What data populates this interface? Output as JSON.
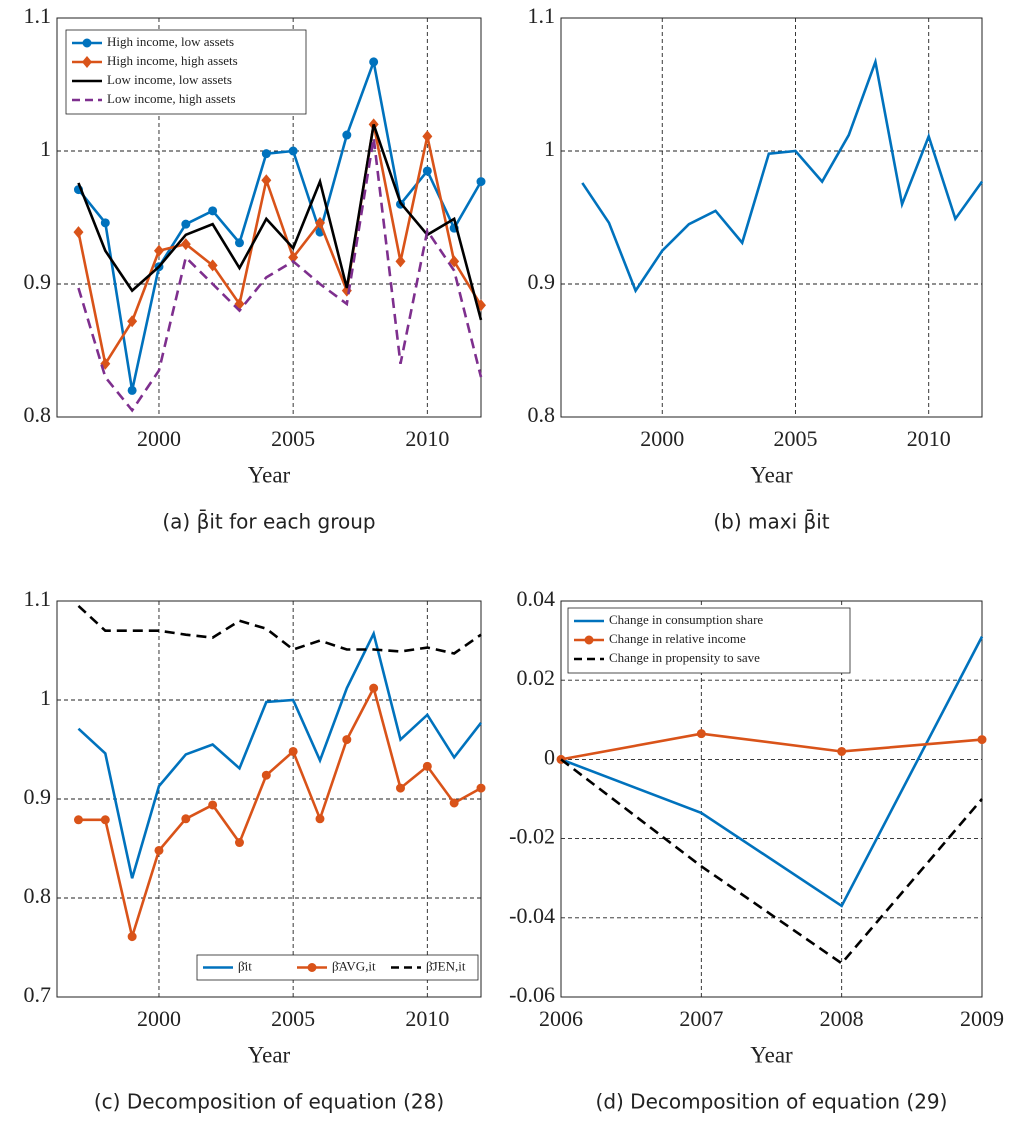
{
  "chart_data": [
    {
      "type": "line",
      "caption": "(a) β̄it for each group",
      "x_label": "Year",
      "x": [
        1997,
        1998,
        1999,
        2000,
        2001,
        2002,
        2003,
        2004,
        2005,
        2006,
        2007,
        2008,
        2009,
        2010,
        2011,
        2012
      ],
      "xlim": [
        1996.2,
        2012
      ],
      "xticks": [
        2000,
        2005,
        2010
      ],
      "ylim": [
        0.8,
        1.1
      ],
      "yticks": [
        0.8,
        0.9,
        1,
        1.1
      ],
      "grid": true,
      "legend": "upper left",
      "series": [
        {
          "name": "High income, low assets",
          "color": "#0072bd",
          "marker": "circle",
          "values": [
            0.971,
            0.946,
            0.82,
            0.913,
            0.945,
            0.955,
            0.931,
            0.998,
            1.0,
            0.939,
            1.012,
            1.067,
            0.96,
            0.985,
            0.942,
            0.977
          ]
        },
        {
          "name": "High income, high assets",
          "color": "#d95319",
          "marker": "diamond",
          "values": [
            0.939,
            0.84,
            0.872,
            0.925,
            0.93,
            0.914,
            0.885,
            0.978,
            0.92,
            0.946,
            0.895,
            1.02,
            0.917,
            1.011,
            0.917,
            0.884
          ]
        },
        {
          "name": "Low income, low assets",
          "color": "#000000",
          "values": [
            0.976,
            0.925,
            0.895,
            0.913,
            0.937,
            0.945,
            0.912,
            0.949,
            0.927,
            0.977,
            0.897,
            1.02,
            0.961,
            0.937,
            0.949,
            0.873
          ]
        },
        {
          "name": "Low income, high assets",
          "color": "#7e2f8e",
          "dash": true,
          "values": [
            0.897,
            0.83,
            0.805,
            0.835,
            0.92,
            0.9,
            0.88,
            0.905,
            0.917,
            0.9,
            0.885,
            1.01,
            0.84,
            0.94,
            0.91,
            0.83
          ]
        }
      ]
    },
    {
      "type": "line",
      "caption": "(b) maxi β̄it",
      "x_label": "Year",
      "x": [
        1997,
        1998,
        1999,
        2000,
        2001,
        2002,
        2003,
        2004,
        2005,
        2006,
        2007,
        2008,
        2009,
        2010,
        2011,
        2012
      ],
      "xlim": [
        1996.2,
        2012
      ],
      "xticks": [
        2000,
        2005,
        2010
      ],
      "ylim": [
        0.8,
        1.1
      ],
      "yticks": [
        0.8,
        0.9,
        1,
        1.1
      ],
      "grid": true,
      "series": [
        {
          "color": "#0072bd",
          "values": [
            0.976,
            0.946,
            0.895,
            0.925,
            0.945,
            0.955,
            0.931,
            0.998,
            1.0,
            0.977,
            1.012,
            1.067,
            0.96,
            1.011,
            0.949,
            0.977
          ]
        }
      ]
    },
    {
      "type": "line",
      "caption": "(c) Decomposition of equation (28)",
      "x_label": "Year",
      "x": [
        1997,
        1998,
        1999,
        2000,
        2001,
        2002,
        2003,
        2004,
        2005,
        2006,
        2007,
        2008,
        2009,
        2010,
        2011,
        2012
      ],
      "xlim": [
        1996.2,
        2012
      ],
      "xticks": [
        2000,
        2005,
        2010
      ],
      "ylim": [
        0.7,
        1.1
      ],
      "yticks": [
        0.7,
        0.8,
        0.9,
        1,
        1.1
      ],
      "grid": true,
      "legend": "lower right",
      "series": [
        {
          "name": "β̄it",
          "color": "#0072bd",
          "values": [
            0.971,
            0.946,
            0.82,
            0.913,
            0.945,
            0.955,
            0.931,
            0.998,
            1.0,
            0.939,
            1.012,
            1.067,
            0.96,
            0.985,
            0.942,
            0.977
          ]
        },
        {
          "name": "β̄AVG,it",
          "color": "#d95319",
          "marker": "circle",
          "values": [
            0.879,
            0.879,
            0.761,
            0.848,
            0.88,
            0.894,
            0.856,
            0.924,
            0.948,
            0.88,
            0.96,
            1.012,
            0.911,
            0.933,
            0.896,
            0.911
          ]
        },
        {
          "name": "β̄JEN,it",
          "color": "#000000",
          "dash": true,
          "values": [
            1.095,
            1.07,
            1.07,
            1.07,
            1.066,
            1.063,
            1.08,
            1.072,
            1.051,
            1.06,
            1.051,
            1.051,
            1.049,
            1.053,
            1.047,
            1.066
          ]
        }
      ]
    },
    {
      "type": "line",
      "caption": "(d) Decomposition of equation (29)",
      "x_label": "Year",
      "x": [
        2006,
        2007,
        2008,
        2009
      ],
      "xlim": [
        2006,
        2009
      ],
      "xticks": [
        2006,
        2007,
        2008,
        2009
      ],
      "ylim": [
        -0.06,
        0.04
      ],
      "yticks": [
        -0.06,
        -0.04,
        -0.02,
        0,
        0.02,
        0.04
      ],
      "grid": true,
      "legend": "upper left",
      "series": [
        {
          "name": "Change in consumption share",
          "color": "#0072bd",
          "values": [
            0,
            -0.0135,
            -0.037,
            0.031
          ]
        },
        {
          "name": "Change in relative income",
          "color": "#d95319",
          "marker": "circle",
          "values": [
            0,
            0.0065,
            0.002,
            0.005
          ]
        },
        {
          "name": "Change in propensity to save",
          "color": "#000000",
          "dash": true,
          "values": [
            0,
            -0.027,
            -0.0515,
            -0.01
          ]
        }
      ]
    }
  ]
}
